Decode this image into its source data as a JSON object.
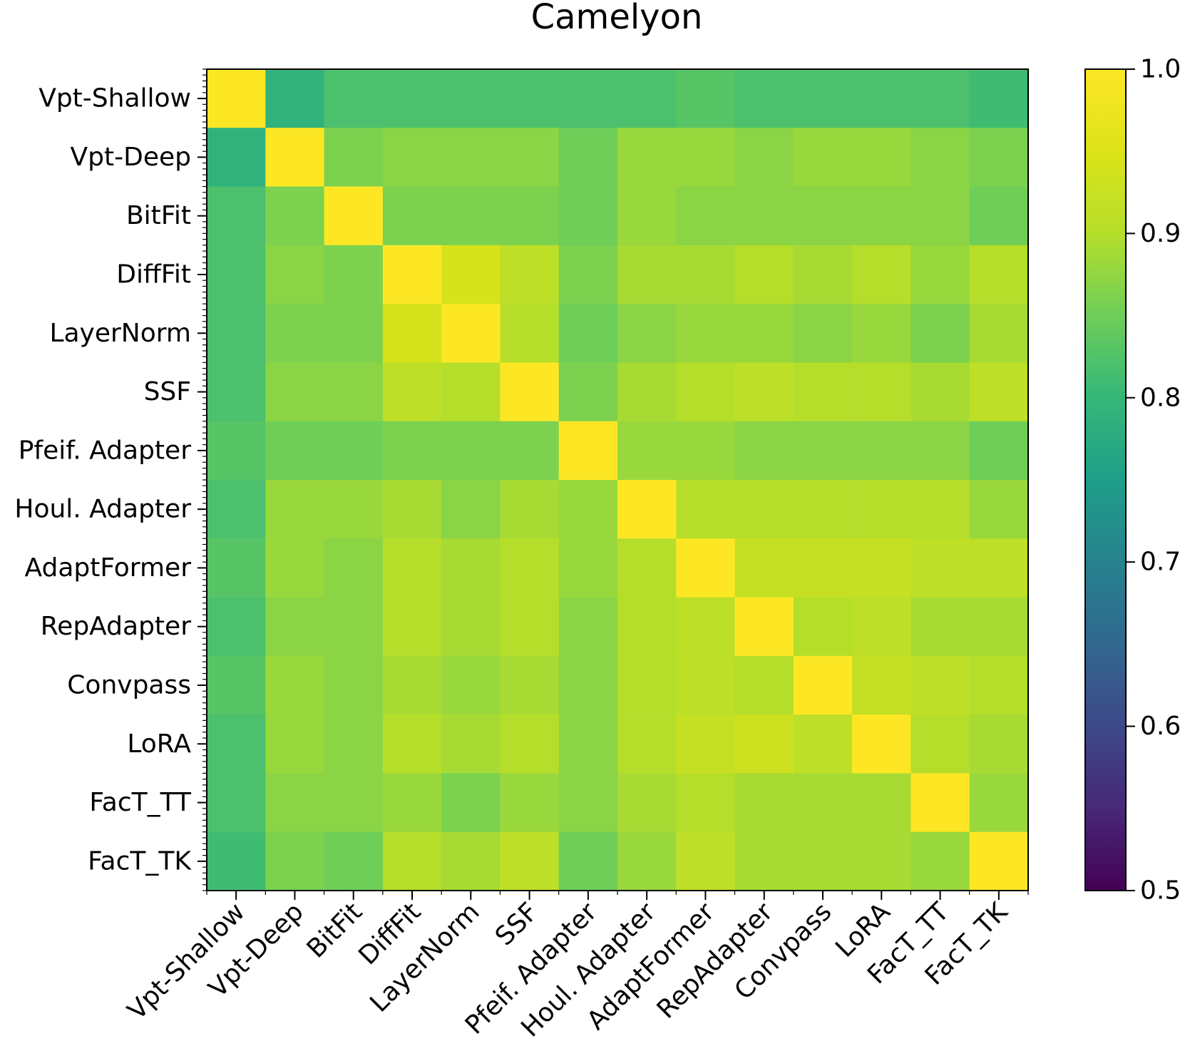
{
  "chart_data": {
    "type": "heatmap",
    "title": "Camelyon",
    "xlabel": "",
    "ylabel": "",
    "categories": [
      "Vpt-Shallow",
      "Vpt-Deep",
      "BitFit",
      "DiffFit",
      "LayerNorm",
      "SSF",
      "Pfeif. Adapter",
      "Houl. Adapter",
      "AdaptFormer",
      "RepAdapter",
      "Convpass",
      "LoRA",
      "FacT_TT",
      "FacT_TK"
    ],
    "matrix": [
      [
        1.0,
        0.79,
        0.82,
        0.82,
        0.82,
        0.82,
        0.82,
        0.82,
        0.83,
        0.82,
        0.82,
        0.82,
        0.82,
        0.81
      ],
      [
        0.79,
        1.0,
        0.86,
        0.87,
        0.87,
        0.87,
        0.85,
        0.88,
        0.88,
        0.87,
        0.88,
        0.88,
        0.87,
        0.86
      ],
      [
        0.82,
        0.86,
        1.0,
        0.86,
        0.86,
        0.86,
        0.85,
        0.88,
        0.87,
        0.87,
        0.87,
        0.87,
        0.87,
        0.85
      ],
      [
        0.82,
        0.87,
        0.86,
        1.0,
        0.94,
        0.91,
        0.86,
        0.89,
        0.89,
        0.9,
        0.89,
        0.9,
        0.88,
        0.9
      ],
      [
        0.82,
        0.86,
        0.86,
        0.94,
        1.0,
        0.9,
        0.85,
        0.87,
        0.88,
        0.88,
        0.87,
        0.88,
        0.86,
        0.89
      ],
      [
        0.82,
        0.87,
        0.87,
        0.91,
        0.9,
        1.0,
        0.86,
        0.89,
        0.9,
        0.91,
        0.9,
        0.9,
        0.89,
        0.91
      ],
      [
        0.83,
        0.85,
        0.85,
        0.86,
        0.86,
        0.86,
        1.0,
        0.88,
        0.88,
        0.87,
        0.87,
        0.87,
        0.87,
        0.85
      ],
      [
        0.82,
        0.88,
        0.88,
        0.89,
        0.87,
        0.89,
        0.88,
        1.0,
        0.9,
        0.9,
        0.9,
        0.9,
        0.9,
        0.88
      ],
      [
        0.83,
        0.88,
        0.87,
        0.9,
        0.89,
        0.9,
        0.88,
        0.9,
        1.0,
        0.92,
        0.92,
        0.92,
        0.91,
        0.91
      ],
      [
        0.82,
        0.87,
        0.87,
        0.9,
        0.89,
        0.9,
        0.87,
        0.9,
        0.91,
        1.0,
        0.9,
        0.91,
        0.89,
        0.89
      ],
      [
        0.83,
        0.88,
        0.87,
        0.89,
        0.88,
        0.89,
        0.87,
        0.9,
        0.91,
        0.9,
        1.0,
        0.92,
        0.91,
        0.9
      ],
      [
        0.82,
        0.88,
        0.87,
        0.9,
        0.89,
        0.9,
        0.87,
        0.9,
        0.92,
        0.93,
        0.91,
        1.0,
        0.9,
        0.89
      ],
      [
        0.82,
        0.87,
        0.87,
        0.88,
        0.86,
        0.88,
        0.87,
        0.89,
        0.9,
        0.89,
        0.89,
        0.89,
        1.0,
        0.88
      ],
      [
        0.81,
        0.86,
        0.85,
        0.9,
        0.89,
        0.91,
        0.85,
        0.88,
        0.91,
        0.89,
        0.89,
        0.89,
        0.88,
        1.0
      ]
    ],
    "colormap": "viridis",
    "vmin": 0.5,
    "vmax": 1.0,
    "colorbar_ticks": [
      "0.5",
      "0.6",
      "0.7",
      "0.8",
      "0.9",
      "1.0"
    ],
    "grid": false
  }
}
